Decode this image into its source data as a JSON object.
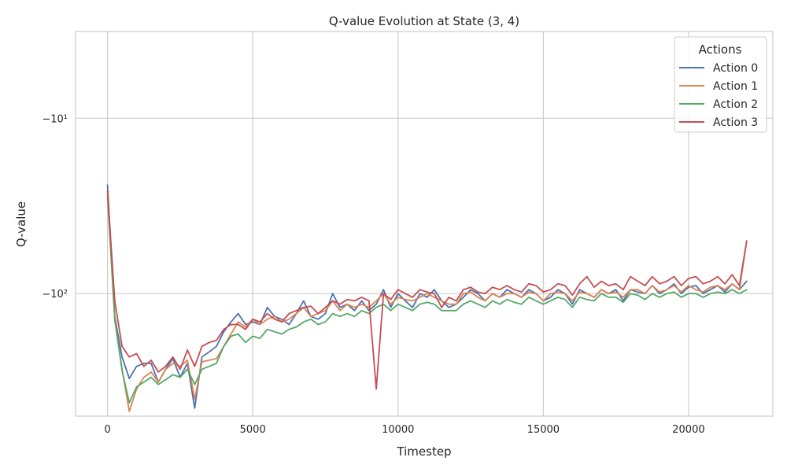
{
  "chart_data": {
    "type": "line",
    "title": "Q-value Evolution at State (3, 4)",
    "xlabel": "Timestep",
    "ylabel": "Q-value",
    "xlim": [
      -1100,
      22900
    ],
    "ylim_abs_log": [
      3.2,
      500
    ],
    "yscale": "symlog",
    "x_ticks": [
      0,
      5000,
      10000,
      15000,
      20000
    ],
    "y_ticks": [
      {
        "value": -10,
        "label": "−10¹"
      },
      {
        "value": -100,
        "label": "−10²"
      }
    ],
    "grid": true,
    "legend": {
      "title": "Actions",
      "position": "top-right"
    },
    "x_step": 250,
    "series": [
      {
        "name": "Action 0",
        "color": "#4c72b0",
        "values": [
          -24,
          -135,
          -230,
          -305,
          -260,
          -250,
          -250,
          -320,
          -270,
          -235,
          -300,
          -250,
          -450,
          -230,
          -215,
          -200,
          -165,
          -145,
          -130,
          -150,
          -145,
          -150,
          -120,
          -135,
          -140,
          -150,
          -130,
          -110,
          -135,
          -140,
          -130,
          -100,
          -120,
          -115,
          -125,
          -110,
          -125,
          -115,
          -95,
          -120,
          -100,
          -110,
          -120,
          -100,
          -105,
          -95,
          -110,
          -120,
          -115,
          -105,
          -95,
          -100,
          -110,
          -100,
          -105,
          -95,
          -100,
          -105,
          -95,
          -100,
          -110,
          -105,
          -95,
          -100,
          -115,
          -95,
          -100,
          -105,
          -95,
          -100,
          -95,
          -110,
          -95,
          -98,
          -100,
          -90,
          -100,
          -95,
          -88,
          -100,
          -92,
          -90,
          -100,
          -95,
          -90,
          -98,
          -88,
          -95,
          -85
        ]
      },
      {
        "name": "Action 1",
        "color": "#dd8452",
        "values": [
          -28,
          -140,
          -270,
          -470,
          -350,
          -300,
          -280,
          -320,
          -270,
          -250,
          -260,
          -240,
          -400,
          -245,
          -240,
          -235,
          -200,
          -170,
          -145,
          -155,
          -140,
          -150,
          -140,
          -135,
          -145,
          -140,
          -130,
          -120,
          -135,
          -130,
          -125,
          -110,
          -125,
          -115,
          -120,
          -115,
          -120,
          -110,
          -100,
          -115,
          -105,
          -108,
          -110,
          -105,
          -100,
          -105,
          -110,
          -115,
          -115,
          -100,
          -98,
          -105,
          -110,
          -100,
          -105,
          -100,
          -100,
          -105,
          -98,
          -100,
          -110,
          -100,
          -98,
          -100,
          -110,
          -98,
          -100,
          -105,
          -95,
          -100,
          -98,
          -105,
          -95,
          -95,
          -100,
          -90,
          -98,
          -95,
          -90,
          -98,
          -90,
          -95,
          -98,
          -92,
          -90,
          -95,
          -88,
          -95,
          -50
        ]
      },
      {
        "name": "Action 2",
        "color": "#55a868",
        "values": [
          -26,
          -140,
          -275,
          -420,
          -340,
          -320,
          -300,
          -330,
          -310,
          -290,
          -300,
          -270,
          -330,
          -270,
          -260,
          -250,
          -200,
          -175,
          -170,
          -190,
          -175,
          -180,
          -160,
          -165,
          -170,
          -160,
          -155,
          -145,
          -140,
          -150,
          -145,
          -130,
          -135,
          -130,
          -135,
          -125,
          -130,
          -120,
          -115,
          -125,
          -115,
          -120,
          -125,
          -115,
          -112,
          -115,
          -125,
          -125,
          -125,
          -115,
          -110,
          -115,
          -120,
          -110,
          -115,
          -108,
          -112,
          -115,
          -105,
          -110,
          -115,
          -110,
          -105,
          -108,
          -120,
          -105,
          -108,
          -110,
          -100,
          -105,
          -105,
          -112,
          -100,
          -102,
          -108,
          -100,
          -105,
          -100,
          -98,
          -105,
          -100,
          -100,
          -105,
          -100,
          -98,
          -100,
          -95,
          -100,
          -95
        ]
      },
      {
        "name": "Action 3",
        "color": "#c44e52",
        "values": [
          -26,
          -110,
          -200,
          -230,
          -220,
          -260,
          -240,
          -280,
          -260,
          -230,
          -270,
          -210,
          -260,
          -200,
          -190,
          -185,
          -160,
          -150,
          -150,
          -160,
          -140,
          -145,
          -130,
          -140,
          -145,
          -130,
          -125,
          -120,
          -118,
          -130,
          -120,
          -110,
          -115,
          -108,
          -110,
          -105,
          -110,
          -350,
          -100,
          -108,
          -95,
          -100,
          -105,
          -95,
          -98,
          -100,
          -120,
          -105,
          -110,
          -95,
          -92,
          -98,
          -100,
          -92,
          -95,
          -90,
          -95,
          -98,
          -88,
          -90,
          -98,
          -95,
          -88,
          -90,
          -102,
          -88,
          -80,
          -92,
          -85,
          -90,
          -88,
          -95,
          -80,
          -85,
          -90,
          -80,
          -88,
          -85,
          -80,
          -90,
          -82,
          -80,
          -88,
          -85,
          -80,
          -88,
          -78,
          -90,
          -50
        ]
      }
    ]
  }
}
